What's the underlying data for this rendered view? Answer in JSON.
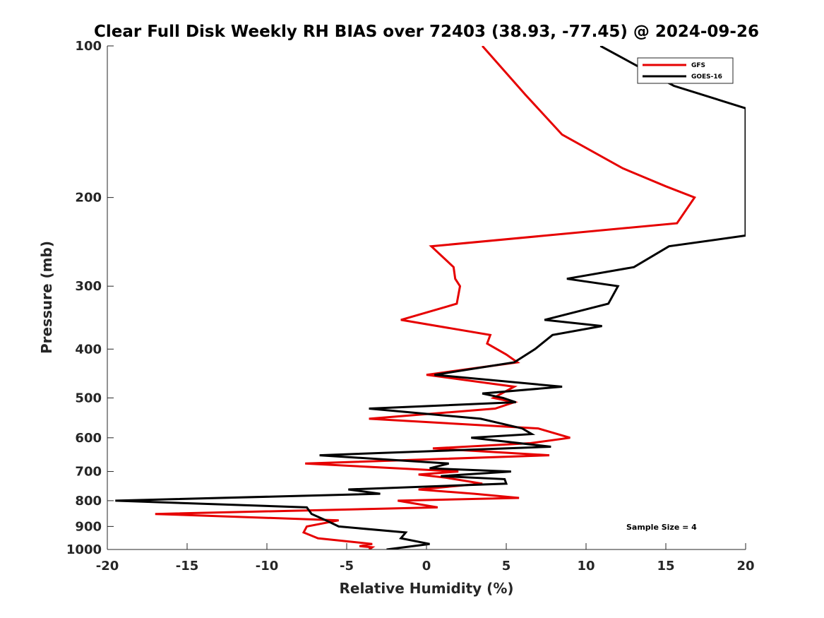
{
  "chart_data": {
    "type": "line",
    "title": "Clear Full Disk Weekly RH BIAS over 72403 (38.93, -77.45) @ 2024-09-26",
    "xlabel": "Relative Humidity (%)",
    "ylabel": "Pressure (mb)",
    "xlim": [
      -20,
      20
    ],
    "ylim": [
      100,
      1000
    ],
    "yscale": "log",
    "y_reversed": true,
    "x_ticks": [
      -20,
      -15,
      -10,
      -5,
      0,
      5,
      10,
      15,
      20
    ],
    "y_ticks": [
      100,
      200,
      300,
      400,
      500,
      600,
      700,
      800,
      900,
      1000
    ],
    "grid": false,
    "legend_position": "top-right",
    "annotation": "Sample Size = 4",
    "series": [
      {
        "name": "GFS",
        "color": "#e60000",
        "points": [
          [
            3.5,
            100
          ],
          [
            6.2,
            125
          ],
          [
            8.5,
            150
          ],
          [
            12.3,
            175
          ],
          [
            15,
            190
          ],
          [
            16.8,
            200
          ],
          [
            15.7,
            225
          ],
          [
            0.3,
            250
          ],
          [
            1.7,
            275
          ],
          [
            1.8,
            290
          ],
          [
            2.1,
            300
          ],
          [
            1.9,
            325
          ],
          [
            -1.6,
            350
          ],
          [
            4,
            375
          ],
          [
            3.8,
            390
          ],
          [
            5,
            410
          ],
          [
            5.7,
            425
          ],
          [
            0,
            450
          ],
          [
            5.5,
            475
          ],
          [
            4.2,
            500
          ],
          [
            5.5,
            510
          ],
          [
            4.3,
            525
          ],
          [
            -3.6,
            550
          ],
          [
            7,
            575
          ],
          [
            9,
            600
          ],
          [
            6.5,
            615
          ],
          [
            0.4,
            630
          ],
          [
            7.7,
            650
          ],
          [
            -7.6,
            675
          ],
          [
            2,
            700
          ],
          [
            -0.5,
            710
          ],
          [
            1.2,
            720
          ],
          [
            3.5,
            740
          ],
          [
            -0.5,
            760
          ],
          [
            3,
            775
          ],
          [
            5.8,
            790
          ],
          [
            -1.8,
            800
          ],
          [
            0.7,
            825
          ],
          [
            -17,
            850
          ],
          [
            -5.5,
            875
          ],
          [
            -7.5,
            900
          ],
          [
            -7.7,
            925
          ],
          [
            -6.8,
            950
          ],
          [
            -3.4,
            975
          ],
          [
            -4.2,
            985
          ],
          [
            -3.4,
            990
          ],
          [
            -3.6,
            1000
          ]
        ]
      },
      {
        "name": "GOES-16",
        "color": "#000000",
        "points": [
          [
            10.9,
            100
          ],
          [
            15.5,
            120
          ],
          [
            20,
            133
          ],
          [
            20,
            238
          ],
          [
            15.2,
            250
          ],
          [
            13,
            275
          ],
          [
            8.8,
            290
          ],
          [
            12,
            300
          ],
          [
            11.4,
            325
          ],
          [
            7.4,
            350
          ],
          [
            11,
            360
          ],
          [
            7.9,
            375
          ],
          [
            6.8,
            400
          ],
          [
            5.5,
            425
          ],
          [
            0.5,
            450
          ],
          [
            8.5,
            475
          ],
          [
            3.5,
            490
          ],
          [
            4.8,
            500
          ],
          [
            5.6,
            510
          ],
          [
            -3.6,
            525
          ],
          [
            3.4,
            550
          ],
          [
            6,
            575
          ],
          [
            6.6,
            590
          ],
          [
            2.8,
            600
          ],
          [
            7.8,
            625
          ],
          [
            -6.7,
            650
          ],
          [
            1.4,
            675
          ],
          [
            0.2,
            690
          ],
          [
            5.3,
            700
          ],
          [
            0.9,
            715
          ],
          [
            4.9,
            725
          ],
          [
            5,
            740
          ],
          [
            -4.9,
            760
          ],
          [
            -2.9,
            775
          ],
          [
            -19.5,
            800
          ],
          [
            -7.5,
            825
          ],
          [
            -7.2,
            850
          ],
          [
            -6.3,
            875
          ],
          [
            -5.5,
            900
          ],
          [
            -1.3,
            925
          ],
          [
            -1.6,
            950
          ],
          [
            0.2,
            975
          ],
          [
            -2.5,
            1000
          ]
        ]
      }
    ]
  }
}
